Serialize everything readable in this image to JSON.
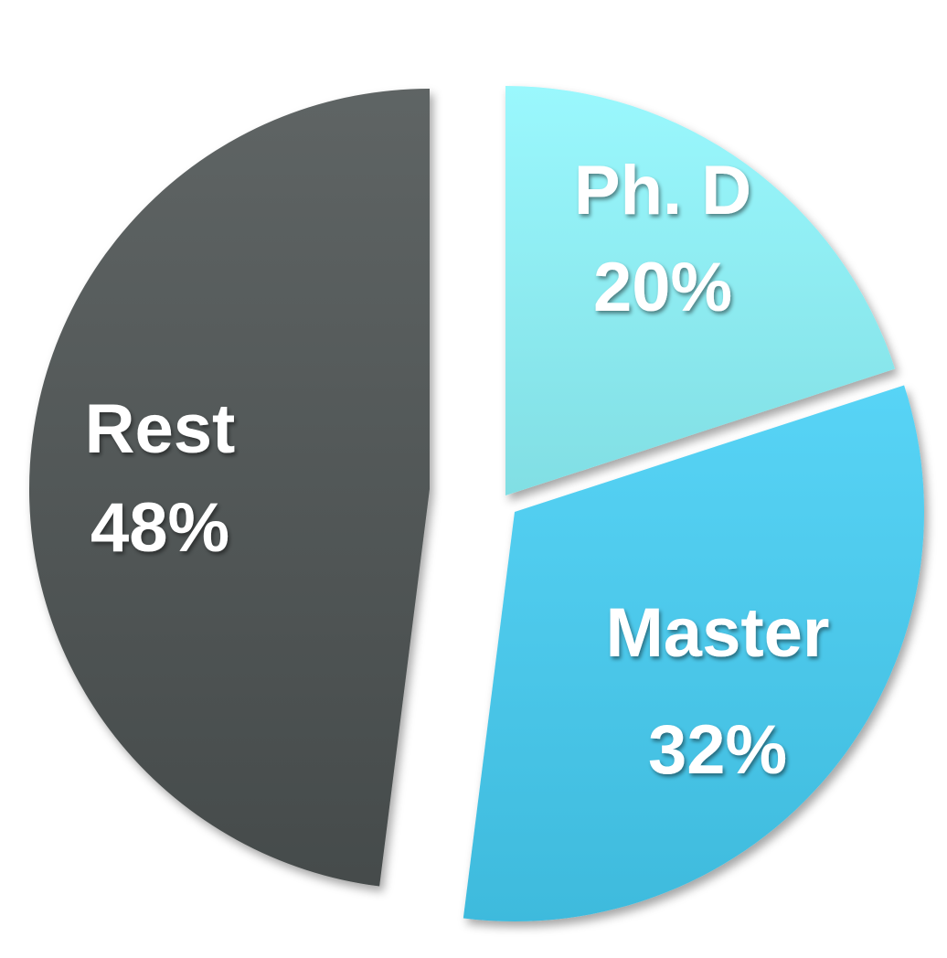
{
  "chart_data": {
    "type": "pie",
    "title": "",
    "exploded": true,
    "slices": [
      {
        "label": "Ph. D",
        "value": 20,
        "value_label": "20%",
        "color": "#8ff7fd"
      },
      {
        "label": "Master",
        "value": 32,
        "value_label": "32%",
        "color": "#45cff5"
      },
      {
        "label": "Rest",
        "value": 48,
        "value_label": "48%",
        "color": "#4e5352"
      }
    ]
  }
}
